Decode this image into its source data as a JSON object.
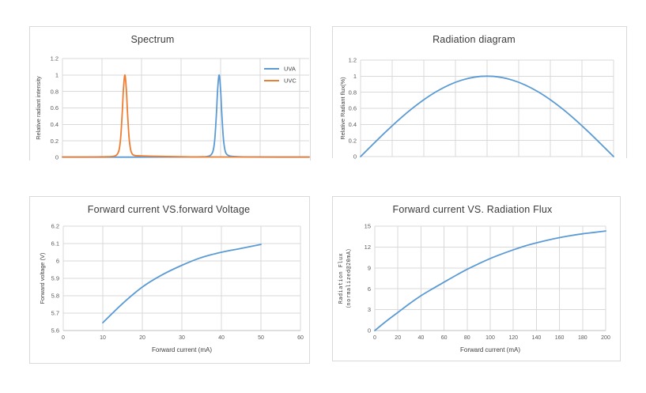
{
  "page": {
    "background": "#ffffff"
  },
  "colors": {
    "series_blue": "#5B9BD5",
    "series_orange": "#ED7D31",
    "grid": "#D9D9D9",
    "box_border": "#D9D9D9",
    "axis_line": "#BFBFBF",
    "title_text": "#3A3A3A",
    "tick_text": "#595959",
    "axis_label_text": "#404040"
  },
  "chart_data": [
    {
      "id": "spectrum",
      "type": "line",
      "title": "Spectrum",
      "ylabel": "Relative radiant intensity",
      "xlabel": "",
      "grid": true,
      "x_axis_labels_visible": false,
      "xlim": [
        0,
        1
      ],
      "ylim": [
        0,
        1.2
      ],
      "yticks": {
        "values": [
          0,
          0.2,
          0.4,
          0.6,
          0.8,
          1,
          1.2
        ],
        "labels": [
          "0",
          "0.2",
          "0.4",
          "0.6",
          "0.8",
          "1",
          "1.2"
        ]
      },
      "legend": {
        "position": "top-right",
        "entries": [
          {
            "name": "UVA",
            "color": "series_blue"
          },
          {
            "name": "UVC",
            "color": "series_orange"
          }
        ]
      },
      "series": [
        {
          "name": "UVA",
          "color": "series_blue",
          "points": [
            [
              0,
              0.003
            ],
            [
              0.3,
              0.003
            ],
            [
              0.45,
              0.004
            ],
            [
              0.55,
              0.006
            ],
            [
              0.585,
              0.01
            ],
            [
              0.602,
              0.03
            ],
            [
              0.6115,
              0.09
            ],
            [
              0.618,
              0.24
            ],
            [
              0.6245,
              0.55
            ],
            [
              0.629,
              0.82
            ],
            [
              0.635,
              1
            ],
            [
              0.641,
              0.82
            ],
            [
              0.6455,
              0.55
            ],
            [
              0.652,
              0.24
            ],
            [
              0.6585,
              0.09
            ],
            [
              0.665,
              0.04
            ],
            [
              0.675,
              0.02
            ],
            [
              0.69,
              0.012
            ],
            [
              0.72,
              0.007
            ],
            [
              0.78,
              0.004
            ],
            [
              0.88,
              0.003
            ],
            [
              1,
              0.003
            ]
          ]
        },
        {
          "name": "UVC",
          "color": "series_orange",
          "points": [
            [
              0,
              0.005
            ],
            [
              0.08,
              0.005
            ],
            [
              0.14,
              0.006
            ],
            [
              0.18,
              0.008
            ],
            [
              0.205,
              0.012
            ],
            [
              0.22,
              0.03
            ],
            [
              0.2295,
              0.09
            ],
            [
              0.236,
              0.24
            ],
            [
              0.2425,
              0.55
            ],
            [
              0.247,
              0.82
            ],
            [
              0.253,
              1
            ],
            [
              0.259,
              0.82
            ],
            [
              0.2635,
              0.55
            ],
            [
              0.27,
              0.24
            ],
            [
              0.2765,
              0.09
            ],
            [
              0.283,
              0.04
            ],
            [
              0.291,
              0.025
            ],
            [
              0.3,
              0.02
            ],
            [
              0.32,
              0.018
            ],
            [
              0.36,
              0.014
            ],
            [
              0.42,
              0.01
            ],
            [
              0.5,
              0.007
            ],
            [
              0.6,
              0.005
            ],
            [
              1,
              0.005
            ]
          ]
        }
      ]
    },
    {
      "id": "radiation-diagram",
      "type": "line",
      "title": "Radiation diagram",
      "ylabel": "Relative Radiant flux(%)",
      "xlabel": "",
      "grid": true,
      "x_axis_labels_visible": false,
      "xlim": [
        0,
        1
      ],
      "ylim": [
        0,
        1.2
      ],
      "yticks": {
        "values": [
          0,
          0.2,
          0.4,
          0.6,
          0.8,
          1,
          1.2
        ],
        "labels": [
          "0",
          "0.2",
          "0.4",
          "0.6",
          "0.8",
          "1",
          "1.2"
        ]
      },
      "series": [
        {
          "name": "Relative Radiant flux",
          "color": "series_blue",
          "points": [
            [
              0,
              0
            ],
            [
              0.05,
              0.156
            ],
            [
              0.1,
              0.309
            ],
            [
              0.15,
              0.454
            ],
            [
              0.2,
              0.588
            ],
            [
              0.25,
              0.707
            ],
            [
              0.3,
              0.809
            ],
            [
              0.35,
              0.891
            ],
            [
              0.4,
              0.951
            ],
            [
              0.45,
              0.988
            ],
            [
              0.5,
              1
            ],
            [
              0.55,
              0.988
            ],
            [
              0.6,
              0.951
            ],
            [
              0.65,
              0.891
            ],
            [
              0.7,
              0.809
            ],
            [
              0.75,
              0.707
            ],
            [
              0.8,
              0.588
            ],
            [
              0.85,
              0.454
            ],
            [
              0.9,
              0.309
            ],
            [
              0.95,
              0.156
            ],
            [
              1,
              0
            ]
          ]
        }
      ]
    },
    {
      "id": "if-vs-vf",
      "type": "line",
      "title": "Forward current VS.forward Voltage",
      "ylabel": "Forward voltage (V)",
      "xlabel": "Forward current (mA)",
      "grid": true,
      "x_axis_labels_visible": true,
      "xlim": [
        0,
        60
      ],
      "ylim": [
        5.6,
        6.2
      ],
      "xticks": {
        "values": [
          0,
          10,
          20,
          30,
          40,
          50,
          60
        ],
        "labels": [
          "0",
          "10",
          "20",
          "30",
          "40",
          "50",
          "60"
        ]
      },
      "yticks": {
        "values": [
          5.6,
          5.7,
          5.8,
          5.9,
          6,
          6.1,
          6.2
        ],
        "labels": [
          "5.6",
          "5.7",
          "5.8",
          "5.9",
          "6",
          "6.1",
          "6.2"
        ]
      },
      "series": [
        {
          "name": "Forward voltage",
          "color": "series_blue",
          "points": [
            [
              10,
              5.645
            ],
            [
              15,
              5.755
            ],
            [
              20,
              5.85
            ],
            [
              25,
              5.92
            ],
            [
              30,
              5.975
            ],
            [
              35,
              6.02
            ],
            [
              40,
              6.05
            ],
            [
              45,
              6.072
            ],
            [
              50,
              6.095
            ]
          ]
        }
      ]
    },
    {
      "id": "if-vs-radiation-flux",
      "type": "line",
      "title": "Forward current VS. Radiation Flux",
      "ylabel": [
        "Radiation Flux",
        "（normalized@20mA）"
      ],
      "xlabel": "Forward current (mA)",
      "grid": true,
      "x_axis_labels_visible": true,
      "xlim": [
        0,
        200
      ],
      "ylim": [
        0,
        15
      ],
      "xticks": {
        "values": [
          0,
          20,
          40,
          60,
          80,
          100,
          120,
          140,
          160,
          180,
          200
        ],
        "labels": [
          "0",
          "20",
          "40",
          "60",
          "80",
          "100",
          "120",
          "140",
          "160",
          "180",
          "200"
        ]
      },
      "yticks": {
        "values": [
          0,
          3,
          6,
          9,
          12,
          15
        ],
        "labels": [
          "0",
          "3",
          "6",
          "9",
          "12",
          "15"
        ]
      },
      "series": [
        {
          "name": "Radiation Flux",
          "color": "series_blue",
          "points": [
            [
              0,
              0
            ],
            [
              10,
              1.35
            ],
            [
              20,
              2.6
            ],
            [
              30,
              3.85
            ],
            [
              40,
              5
            ],
            [
              50,
              6
            ],
            [
              60,
              6.95
            ],
            [
              70,
              7.9
            ],
            [
              80,
              8.8
            ],
            [
              90,
              9.6
            ],
            [
              100,
              10.35
            ],
            [
              110,
              11
            ],
            [
              120,
              11.6
            ],
            [
              130,
              12.15
            ],
            [
              140,
              12.6
            ],
            [
              150,
              13
            ],
            [
              160,
              13.35
            ],
            [
              170,
              13.65
            ],
            [
              180,
              13.9
            ],
            [
              190,
              14.1
            ],
            [
              200,
              14.3
            ]
          ]
        }
      ]
    }
  ]
}
